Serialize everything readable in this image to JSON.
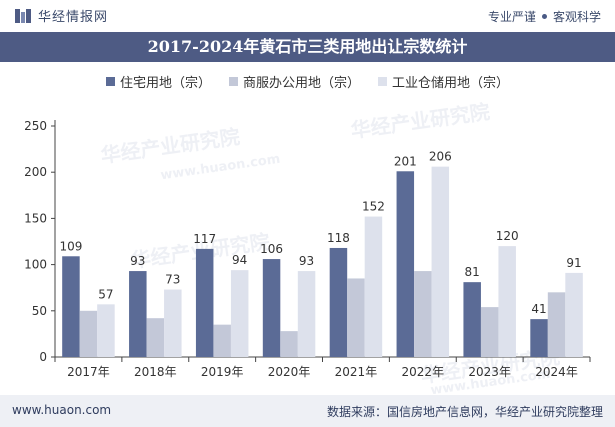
{
  "header": {
    "brand_name": "华经情报网",
    "slogan_left": "专业严谨",
    "slogan_right": "客观科学"
  },
  "title": "2017-2024年黄石市三类用地出让宗数统计",
  "watermark": {
    "cn": "华经产业研究院",
    "url": "www.huaon.com"
  },
  "footer": {
    "website": "www.huaon.com",
    "source": "数据来源：国信房地产信息网，华经产业研究院整理"
  },
  "colors": {
    "title_bg": "#4e5b84",
    "series1": "#5b6b96",
    "series2": "#c3c8d8",
    "series3": "#dde1ec",
    "footer_bg": "#eef0f5"
  },
  "chart_data": {
    "type": "bar",
    "categories": [
      "2017年",
      "2018年",
      "2019年",
      "2020年",
      "2021年",
      "2022年",
      "2023年",
      "2024年"
    ],
    "series": [
      {
        "name": "住宅用地（宗）",
        "values": [
          109,
          93,
          117,
          106,
          118,
          201,
          81,
          41
        ],
        "labeled": true
      },
      {
        "name": "商服办公用地（宗）",
        "values": [
          50,
          42,
          35,
          28,
          85,
          93,
          54,
          70
        ],
        "labeled": false
      },
      {
        "name": "工业仓储用地（宗）",
        "values": [
          57,
          73,
          94,
          93,
          152,
          206,
          120,
          91
        ],
        "labeled": true
      }
    ],
    "ylim": [
      0,
      250
    ],
    "yticks": [
      0,
      50,
      100,
      150,
      200,
      250
    ],
    "grid": false,
    "legend_position": "top"
  }
}
